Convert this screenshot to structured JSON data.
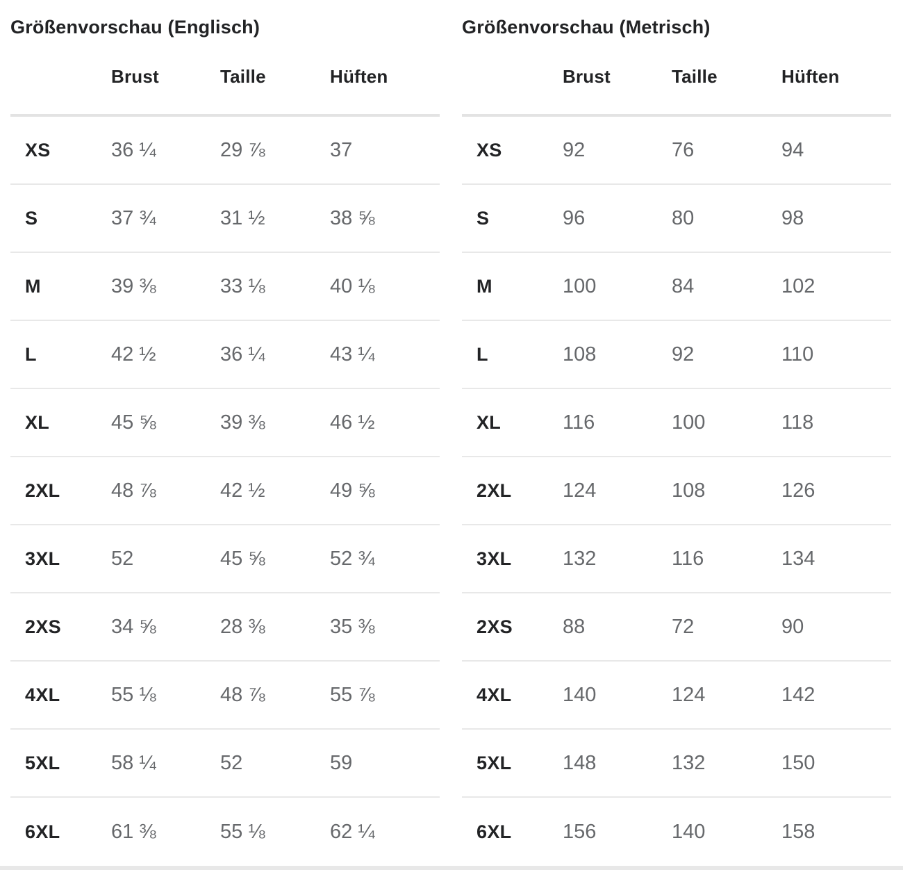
{
  "colors": {
    "text_dark": "#222325",
    "text_gray": "#66686b",
    "line_light": "#e8e8e8",
    "line_strong": "#e3e3e3",
    "bg": "#ffffff"
  },
  "tables": [
    {
      "title": "Größenvorschau (Englisch)",
      "columns": [
        "Brust",
        "Taille",
        "Hüften"
      ],
      "rows": [
        {
          "size": "XS",
          "values": [
            "36 ¼",
            "29 ⅞",
            "37"
          ]
        },
        {
          "size": "S",
          "values": [
            "37 ¾",
            "31 ½",
            "38 ⅝"
          ]
        },
        {
          "size": "M",
          "values": [
            "39 ⅜",
            "33 ⅛",
            "40 ⅛"
          ]
        },
        {
          "size": "L",
          "values": [
            "42 ½",
            "36 ¼",
            "43 ¼"
          ]
        },
        {
          "size": "XL",
          "values": [
            "45 ⅝",
            "39 ⅜",
            "46 ½"
          ]
        },
        {
          "size": "2XL",
          "values": [
            "48 ⅞",
            "42 ½",
            "49 ⅝"
          ]
        },
        {
          "size": "3XL",
          "values": [
            "52",
            "45 ⅝",
            "52 ¾"
          ]
        },
        {
          "size": "2XS",
          "values": [
            "34 ⅝",
            "28 ⅜",
            "35 ⅜"
          ]
        },
        {
          "size": "4XL",
          "values": [
            "55 ⅛",
            "48 ⅞",
            "55 ⅞"
          ]
        },
        {
          "size": "5XL",
          "values": [
            "58 ¼",
            "52",
            "59"
          ]
        },
        {
          "size": "6XL",
          "values": [
            "61 ⅜",
            "55 ⅛",
            "62 ¼"
          ]
        }
      ]
    },
    {
      "title": "Größenvorschau (Metrisch)",
      "columns": [
        "Brust",
        "Taille",
        "Hüften"
      ],
      "rows": [
        {
          "size": "XS",
          "values": [
            "92",
            "76",
            "94"
          ]
        },
        {
          "size": "S",
          "values": [
            "96",
            "80",
            "98"
          ]
        },
        {
          "size": "M",
          "values": [
            "100",
            "84",
            "102"
          ]
        },
        {
          "size": "L",
          "values": [
            "108",
            "92",
            "110"
          ]
        },
        {
          "size": "XL",
          "values": [
            "116",
            "100",
            "118"
          ]
        },
        {
          "size": "2XL",
          "values": [
            "124",
            "108",
            "126"
          ]
        },
        {
          "size": "3XL",
          "values": [
            "132",
            "116",
            "134"
          ]
        },
        {
          "size": "2XS",
          "values": [
            "88",
            "72",
            "90"
          ]
        },
        {
          "size": "4XL",
          "values": [
            "140",
            "124",
            "142"
          ]
        },
        {
          "size": "5XL",
          "values": [
            "148",
            "132",
            "150"
          ]
        },
        {
          "size": "6XL",
          "values": [
            "156",
            "140",
            "158"
          ]
        }
      ]
    }
  ]
}
